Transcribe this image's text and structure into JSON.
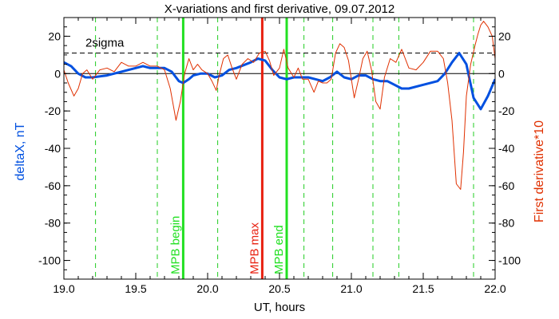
{
  "chart_data": {
    "type": "line",
    "title": "X-variations and first derivative, 09.07.2012",
    "xlabel": "UT, hours",
    "ylabel_left": "deltaX, nT",
    "ylabel_right": "First derivative*10",
    "xlim": [
      19.0,
      22.0
    ],
    "ylim": [
      -110,
      30
    ],
    "x_ticks": [
      19.0,
      19.5,
      20.0,
      20.5,
      21.0,
      21.5,
      22.0
    ],
    "x_tick_labels": [
      "19.0",
      "19.5",
      "20.0",
      "20.5",
      "21.0",
      "21.5",
      "22.0"
    ],
    "y_ticks": [
      20,
      0,
      -20,
      -40,
      -60,
      -80,
      -100
    ],
    "y_tick_labels": [
      "20",
      "0",
      "-20",
      "-40",
      "-60",
      "-80",
      "-100"
    ],
    "grid": false,
    "colors": {
      "deltaX": "#0050e0",
      "derivative": "#e03000",
      "mpb_markers": "#22e022",
      "mpb_max": "#e82010",
      "dashed_green": "#22cc22",
      "threshold": "#000000",
      "zero_line": "#000000",
      "left_label": "#0050e0",
      "right_label": "#e03000"
    },
    "threshold": {
      "value": 11,
      "label": "2sigma"
    },
    "zero_line": 0,
    "vertical_markers": [
      {
        "x": 19.83,
        "label": "MPB begin",
        "style": "solid",
        "color_key": "mpb_markers"
      },
      {
        "x": 20.38,
        "label": "MPB max",
        "style": "solid",
        "color_key": "mpb_max"
      },
      {
        "x": 20.55,
        "label": "MPB end",
        "style": "solid",
        "color_key": "mpb_markers"
      }
    ],
    "dashed_lines_x": [
      19.22,
      19.65,
      20.07,
      20.67,
      20.87,
      21.15,
      21.33,
      21.85
    ],
    "series": [
      {
        "key": "deltaX",
        "x": [
          19.0,
          19.05,
          19.1,
          19.15,
          19.2,
          19.3,
          19.4,
          19.5,
          19.55,
          19.6,
          19.65,
          19.7,
          19.75,
          19.8,
          19.83,
          19.87,
          19.9,
          19.95,
          20.0,
          20.05,
          20.1,
          20.15,
          20.2,
          20.3,
          20.35,
          20.4,
          20.45,
          20.5,
          20.55,
          20.6,
          20.7,
          20.75,
          20.8,
          20.85,
          20.9,
          20.95,
          21.0,
          21.05,
          21.1,
          21.15,
          21.2,
          21.25,
          21.3,
          21.35,
          21.4,
          21.5,
          21.6,
          21.65,
          21.7,
          21.75,
          21.8,
          21.85,
          21.9,
          21.95,
          22.0
        ],
        "y": [
          6,
          4,
          0,
          -2,
          -2,
          -1,
          1,
          3,
          4,
          3,
          3,
          3,
          1,
          -4,
          -5,
          -3,
          -1,
          0,
          0,
          -2,
          -1,
          2,
          3,
          6,
          8,
          7,
          2,
          -2,
          -3,
          -2,
          -2,
          -3,
          -4,
          -2,
          1,
          -2,
          -3,
          -1,
          -1,
          -3,
          -4,
          -4,
          -6,
          -8,
          -8,
          -6,
          -4,
          0,
          6,
          11,
          5,
          -13,
          -19,
          -12,
          -3
        ]
      },
      {
        "key": "derivative",
        "x": [
          19.0,
          19.03,
          19.07,
          19.1,
          19.13,
          19.16,
          19.2,
          19.25,
          19.3,
          19.35,
          19.4,
          19.45,
          19.5,
          19.55,
          19.6,
          19.65,
          19.7,
          19.74,
          19.78,
          19.81,
          19.84,
          19.87,
          19.9,
          19.93,
          19.96,
          20.0,
          20.03,
          20.06,
          20.08,
          20.11,
          20.14,
          20.17,
          20.2,
          20.24,
          20.28,
          20.32,
          20.36,
          20.4,
          20.43,
          20.46,
          20.5,
          20.53,
          20.56,
          20.6,
          20.63,
          20.66,
          20.7,
          20.74,
          20.77,
          20.8,
          20.83,
          20.86,
          20.89,
          20.92,
          20.95,
          20.98,
          21.02,
          21.05,
          21.08,
          21.11,
          21.14,
          21.17,
          21.2,
          21.23,
          21.27,
          21.31,
          21.35,
          21.4,
          21.45,
          21.5,
          21.55,
          21.6,
          21.64,
          21.67,
          21.7,
          21.73,
          21.76,
          21.78,
          21.8,
          21.83,
          21.86,
          21.88,
          21.9,
          21.92,
          21.95,
          21.98,
          22.0
        ],
        "y": [
          2,
          -5,
          -12,
          -8,
          0,
          2,
          -3,
          2,
          3,
          1,
          6,
          4,
          4,
          6,
          4,
          4,
          2,
          -8,
          -25,
          -15,
          0,
          8,
          2,
          5,
          2,
          0,
          -4,
          -9,
          -1,
          8,
          10,
          3,
          -3,
          5,
          8,
          6,
          11,
          12,
          7,
          -1,
          3,
          13,
          3,
          -2,
          3,
          -3,
          -3,
          -10,
          -4,
          -5,
          -5,
          -3,
          11,
          16,
          14,
          7,
          -13,
          -3,
          8,
          12,
          2,
          -15,
          -19,
          -2,
          8,
          6,
          13,
          3,
          2,
          6,
          12,
          12,
          8,
          -5,
          -25,
          -59,
          -62,
          -42,
          -12,
          5,
          15,
          21,
          26,
          28,
          25,
          20,
          8
        ]
      }
    ]
  }
}
